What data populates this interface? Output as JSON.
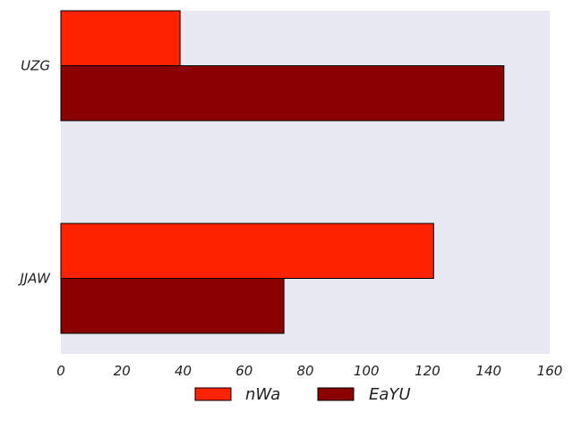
{
  "chart_data": {
    "type": "bar",
    "orientation": "horizontal",
    "categories": [
      "UZG",
      "JJAW"
    ],
    "series": [
      {
        "name": "nWa",
        "values": [
          39,
          122
        ],
        "color": "#ff2200"
      },
      {
        "name": "EaYU",
        "values": [
          145,
          73
        ],
        "color": "#8b0000"
      }
    ],
    "xlim": [
      0,
      160
    ],
    "xticks": [
      "0",
      "20",
      "40",
      "60",
      "80",
      "100",
      "120",
      "140",
      "160"
    ],
    "grid": false,
    "legend": "bottom",
    "plot_background": "#e8e8f2"
  }
}
